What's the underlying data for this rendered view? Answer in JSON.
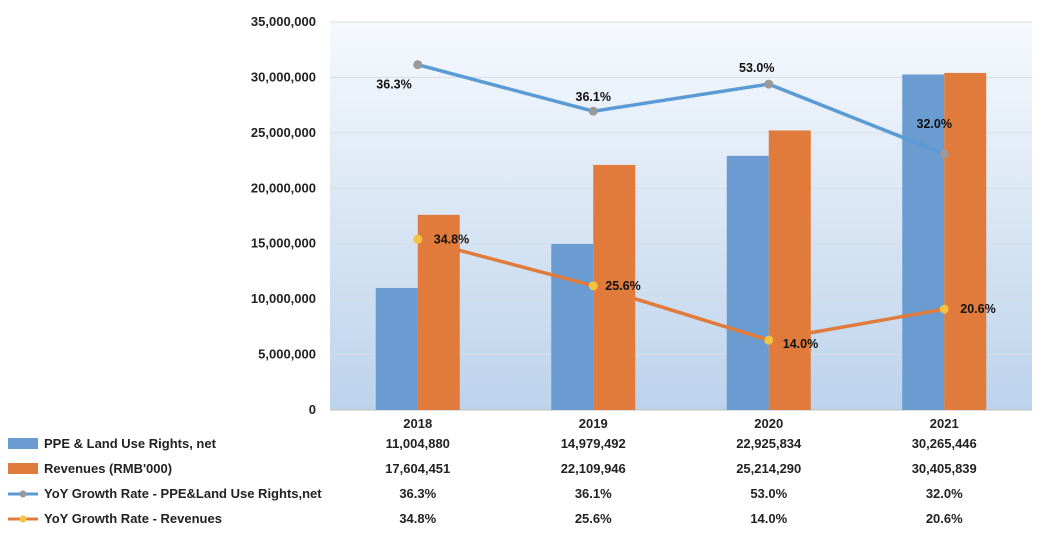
{
  "chart_data": {
    "type": "bar",
    "categories": [
      "2018",
      "2019",
      "2020",
      "2021"
    ],
    "ylim": [
      0,
      35000000
    ],
    "yticks": [
      "0",
      "5,000,000",
      "10,000,000",
      "15,000,000",
      "20,000,000",
      "25,000,000",
      "30,000,000",
      "35,000,000"
    ],
    "ytick_values": [
      0,
      5000000,
      10000000,
      15000000,
      20000000,
      25000000,
      30000000,
      35000000
    ],
    "line_axis_range": [
      0,
      1
    ],
    "series": [
      {
        "name": "PPE & Land Use Rights, net",
        "type": "bar",
        "color": "#6a9bd1",
        "values": [
          11004880,
          14979492,
          22925834,
          30265446
        ],
        "value_labels": [
          "11,004,880",
          "14,979,492",
          "22,925,834",
          "30,265,446"
        ]
      },
      {
        "name": "Revenues (RMB'000)",
        "type": "bar",
        "color": "#e07b3c",
        "values": [
          17604451,
          22109946,
          25214290,
          30405839
        ],
        "value_labels": [
          "17,604,451",
          "22,109,946",
          "25,214,290",
          "30,405,839"
        ]
      },
      {
        "name": "YoY Growth Rate - PPE&Land Use Rights,net",
        "type": "line",
        "color": "#5b9bd5",
        "marker_color": "#9a9a9a",
        "values": [
          0.363,
          0.361,
          0.53,
          0.32
        ],
        "line_scale_values": [
          0.89,
          0.77,
          0.84,
          0.66
        ],
        "value_labels": [
          "36.3%",
          "36.1%",
          "53.0%",
          "32.0%"
        ]
      },
      {
        "name": "YoY Growth Rate - Revenues",
        "type": "line",
        "color": "#e07b3c",
        "marker_color": "#f5c242",
        "values": [
          0.348,
          0.256,
          0.14,
          0.206
        ],
        "line_scale_values": [
          0.44,
          0.32,
          0.18,
          0.26
        ],
        "value_labels": [
          "34.8%",
          "25.6%",
          "14.0%",
          "20.6%"
        ]
      }
    ],
    "grid": true,
    "data_table": true,
    "legend": "in data table"
  }
}
